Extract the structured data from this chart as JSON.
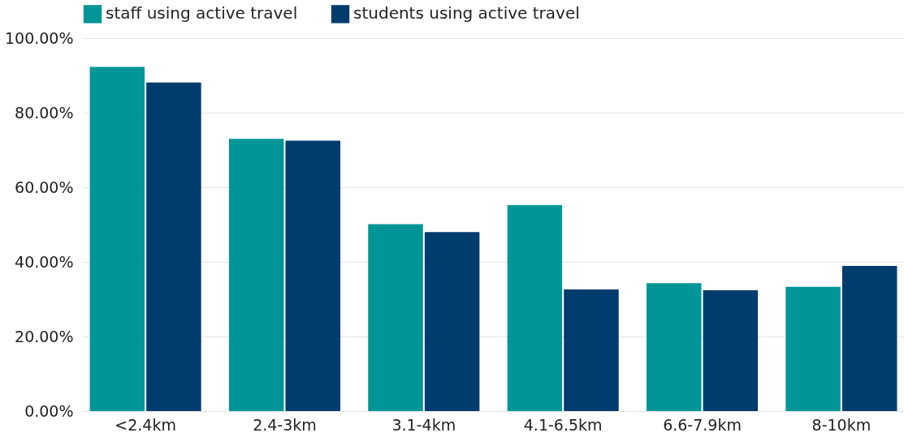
{
  "chart_data": {
    "type": "bar",
    "categories": [
      "<2.4km",
      "2.4-3km",
      "3.1-4km",
      "4.1-6.5km",
      "6.6-7.9km",
      "8-10km"
    ],
    "series": [
      {
        "name": "staff using active travel",
        "color": "#009597",
        "values": [
          92.3,
          73.0,
          50.1,
          55.2,
          34.3,
          33.3
        ]
      },
      {
        "name": "students using active travel",
        "color": "#003d6e",
        "values": [
          88.1,
          72.5,
          48.0,
          32.6,
          32.4,
          38.9
        ]
      }
    ],
    "ylim": [
      0,
      100
    ],
    "yticks": [
      {
        "value": 0,
        "label": "0.00%"
      },
      {
        "value": 20,
        "label": "20.00%"
      },
      {
        "value": 40,
        "label": "40.00%"
      },
      {
        "value": 60,
        "label": "60.00%"
      },
      {
        "value": 80,
        "label": "80.00%"
      },
      {
        "value": 100,
        "label": "100.00%"
      }
    ],
    "grid": "y",
    "legend": "top"
  }
}
